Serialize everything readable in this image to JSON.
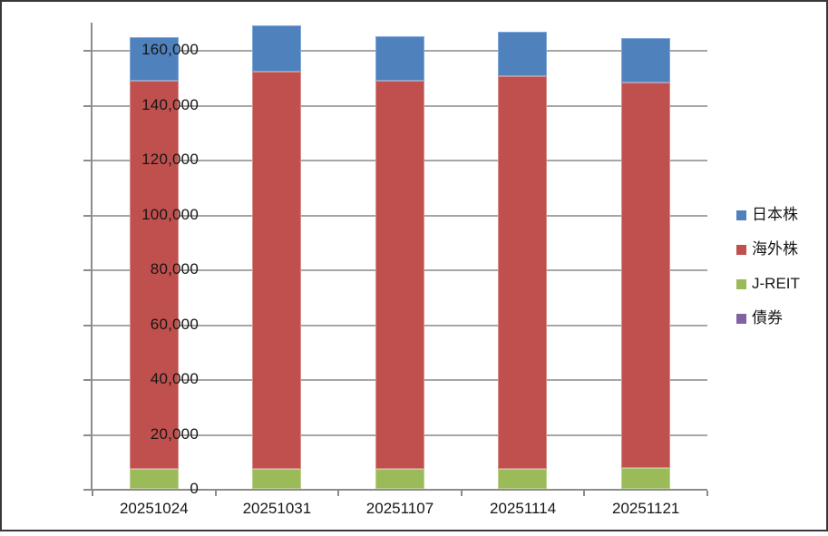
{
  "chart_data": {
    "type": "bar",
    "stacked": true,
    "title": "",
    "xlabel": "",
    "ylabel": "",
    "categories": [
      "20251024",
      "20251031",
      "20251107",
      "20251114",
      "20251121"
    ],
    "series": [
      {
        "name": "日本株",
        "color": "#4F81BD",
        "border_color": "#7FA8D9",
        "values": [
          15800,
          16900,
          16300,
          16400,
          16100
        ]
      },
      {
        "name": "海外株",
        "color": "#C0504D",
        "border_color": "#D58E8C",
        "values": [
          141500,
          144900,
          141300,
          143000,
          140600
        ]
      },
      {
        "name": "J-REIT",
        "color": "#9BBB59",
        "border_color": "#BCD28E",
        "values": [
          7300,
          7300,
          7400,
          7400,
          7600
        ]
      },
      {
        "name": "債券",
        "color": "#8064A2",
        "border_color": "#A58FC0",
        "values": [
          0,
          0,
          0,
          0,
          0
        ]
      }
    ],
    "stack_bottom_to_top": [
      "債券",
      "J-REIT",
      "海外株",
      "日本株"
    ],
    "legend_order": [
      "日本株",
      "海外株",
      "J-REIT",
      "債券"
    ],
    "legend_position": "right",
    "ylim": [
      0,
      170000
    ],
    "ytick_step": 20000,
    "ytick_labels": [
      "0",
      "20,000",
      "40,000",
      "60,000",
      "80,000",
      "100,000",
      "120,000",
      "140,000",
      "160,000"
    ],
    "grid": "horizontal-on",
    "bar_gap_ratio": 1.5,
    "colors": {
      "grid_color": "#A6A6A6",
      "axis_color": "#8C8C8C",
      "text_color": "#161616",
      "background": "#FFFFFF",
      "frame_border": "#383838"
    }
  }
}
